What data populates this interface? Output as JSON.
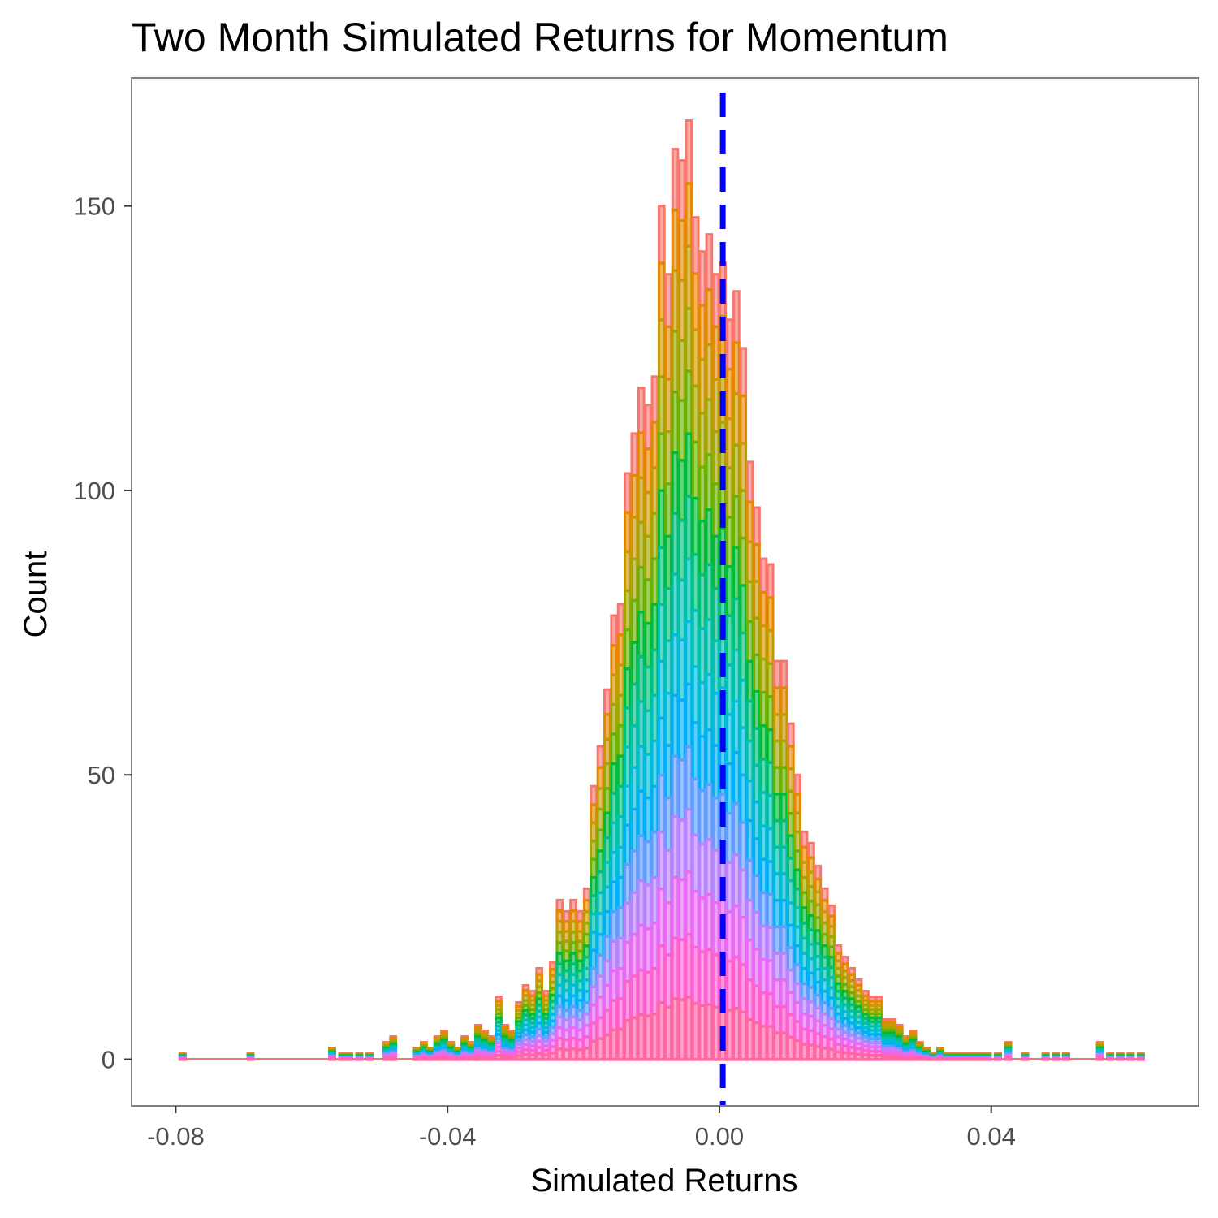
{
  "chart_data": {
    "type": "bar",
    "title": "Two Month Simulated Returns for Momentum",
    "xlabel": "Simulated Returns",
    "ylabel": "Count",
    "xlim": [
      -0.0865,
      0.0705
    ],
    "ylim": [
      -8.2,
      172.5
    ],
    "x_ticks": [
      -0.08,
      -0.04,
      0.0,
      0.04
    ],
    "x_tick_labels": [
      "-0.08",
      "-0.04",
      "0.00",
      "0.04"
    ],
    "y_ticks": [
      0,
      50,
      100,
      150
    ],
    "y_tick_labels": [
      "0",
      "50",
      "100",
      "150"
    ],
    "grid": false,
    "legend": "none",
    "bin_width": 0.0008,
    "reference_line": {
      "x": 0.0005,
      "style": "dashed",
      "color": "#0000ff"
    },
    "series_colors": [
      "#f8766d",
      "#e58700",
      "#c99800",
      "#a3a500",
      "#6bb100",
      "#00ba38",
      "#00bf7d",
      "#00c0af",
      "#00bcd8",
      "#00b0f6",
      "#619cff",
      "#b983ff",
      "#e76bf3",
      "#fd61d1",
      "#ff67a4"
    ],
    "bins": {
      "x": [
        -0.079,
        -0.069,
        -0.057,
        -0.0555,
        -0.0545,
        -0.053,
        -0.0515,
        -0.049,
        -0.048,
        -0.0445,
        -0.0435,
        -0.0425,
        -0.0415,
        -0.0405,
        -0.0395,
        -0.0385,
        -0.0375,
        -0.0365,
        -0.0355,
        -0.0345,
        -0.0335,
        -0.0325,
        -0.0315,
        -0.0305,
        -0.0295,
        -0.0285,
        -0.0275,
        -0.0265,
        -0.0255,
        -0.0245,
        -0.0235,
        -0.0225,
        -0.0215,
        -0.0205,
        -0.0195,
        -0.0185,
        -0.0175,
        -0.0165,
        -0.0155,
        -0.0145,
        -0.0135,
        -0.0125,
        -0.0115,
        -0.0105,
        -0.0095,
        -0.0085,
        -0.0075,
        -0.0065,
        -0.0055,
        -0.0045,
        -0.0035,
        -0.0025,
        -0.0015,
        -0.0005,
        0.0005,
        0.0015,
        0.0025,
        0.0035,
        0.0045,
        0.0055,
        0.0065,
        0.0075,
        0.0085,
        0.0095,
        0.0105,
        0.0115,
        0.0125,
        0.0135,
        0.0145,
        0.0155,
        0.0165,
        0.0175,
        0.0185,
        0.0195,
        0.0205,
        0.0215,
        0.0225,
        0.0235,
        0.0245,
        0.0255,
        0.0265,
        0.0275,
        0.0285,
        0.0295,
        0.0305,
        0.0315,
        0.0325,
        0.0335,
        0.0345,
        0.0355,
        0.0365,
        0.0375,
        0.0385,
        0.0395,
        0.041,
        0.0425,
        0.045,
        0.048,
        0.0495,
        0.051,
        0.056,
        0.0575,
        0.059,
        0.0605,
        0.062
      ],
      "counts": [
        1,
        1,
        2,
        1,
        1,
        1,
        1,
        3,
        4,
        2,
        3,
        2,
        4,
        5,
        3,
        2,
        4,
        3,
        6,
        5,
        4,
        11,
        6,
        5,
        10,
        13,
        12,
        16,
        12,
        17,
        28,
        26,
        28,
        26,
        30,
        48,
        55,
        65,
        78,
        80,
        103,
        110,
        118,
        115,
        120,
        150,
        138,
        160,
        158,
        165,
        148,
        142,
        145,
        138,
        140,
        130,
        135,
        125,
        105,
        97,
        88,
        87,
        70,
        70,
        59,
        50,
        40,
        38,
        34,
        30,
        27,
        20,
        18,
        16,
        14,
        12,
        11,
        11,
        7,
        7,
        6,
        4,
        5,
        3,
        2,
        1,
        2,
        1,
        1,
        1,
        1,
        1,
        1,
        1,
        1,
        3,
        1,
        1,
        1,
        1,
        3,
        1,
        1,
        1,
        1
      ]
    }
  }
}
